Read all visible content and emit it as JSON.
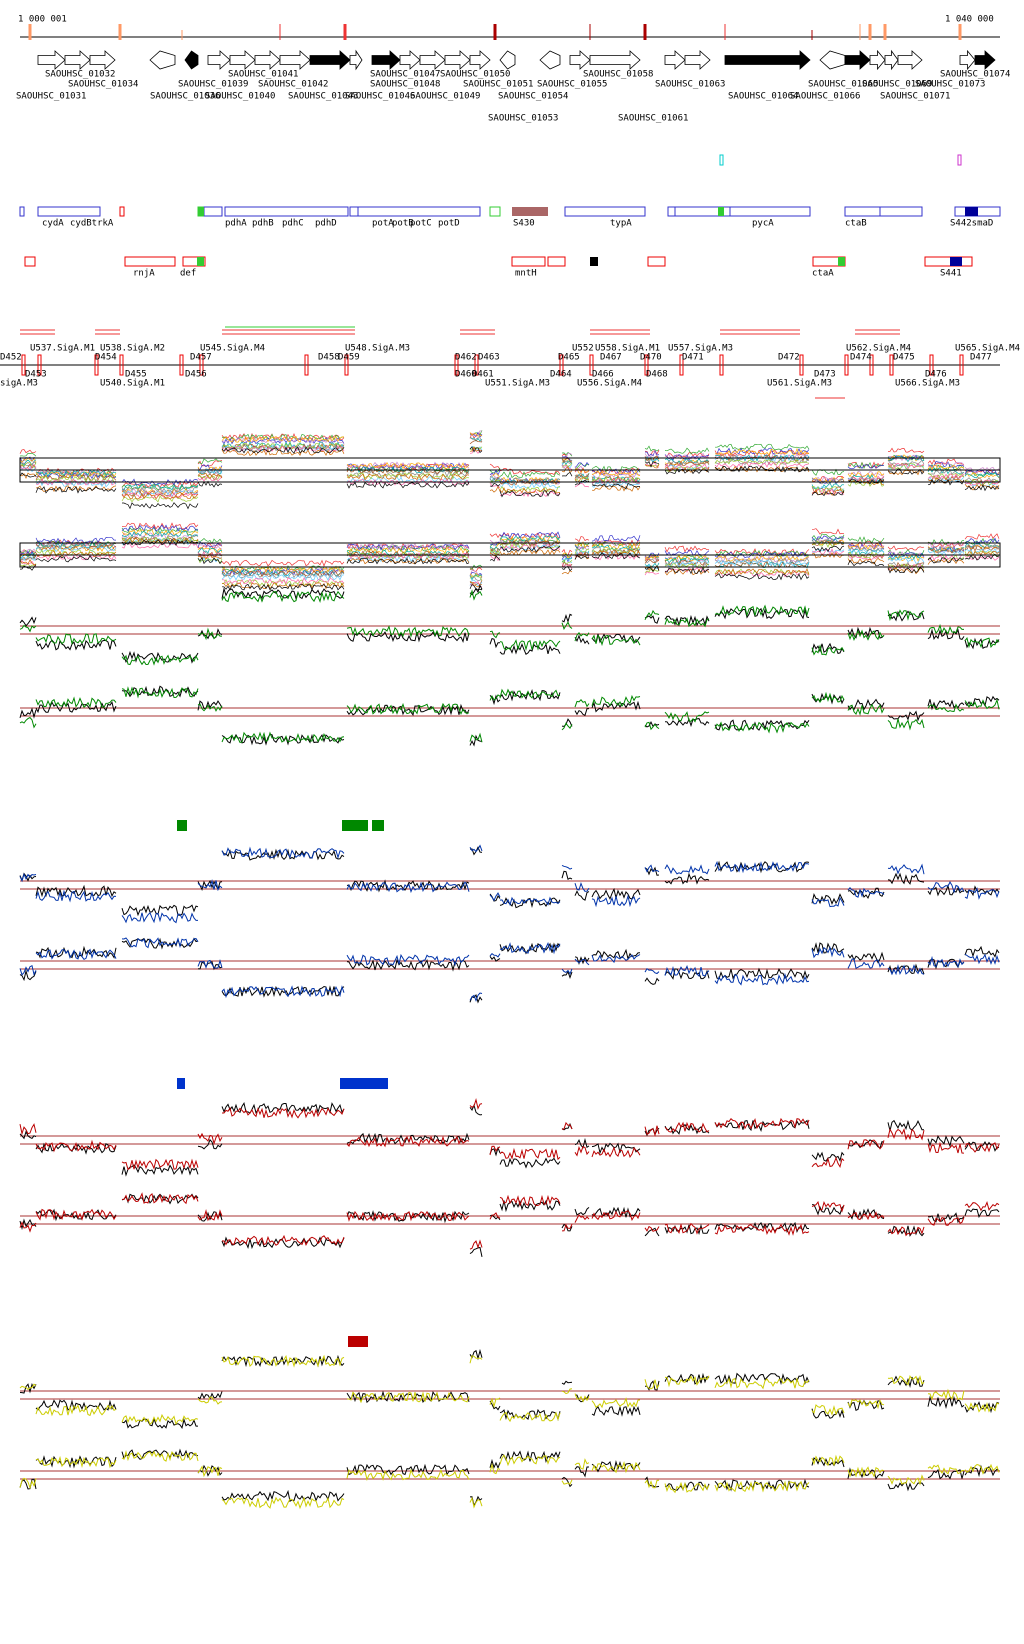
{
  "ruler": {
    "start": "1 000 001",
    "end": "1 040 000"
  },
  "genes": [
    "SAOUHSC_01032",
    "SAOUHSC_01041",
    "SAOUHSC_01047",
    "SAOUHSC_01050",
    "SAOUHSC_01058",
    "SAOUHSC_01074",
    "SAOUHSC_01034",
    "SAOUHSC_01039",
    "SAOUHSC_01042",
    "SAOUHSC_01048",
    "SAOUHSC_01051",
    "SAOUHSC_01055",
    "SAOUHSC_01063",
    "SAOUHSC_01065",
    "SAOUHSC_01069",
    "SAOUHSC_01073",
    "SAOUHSC_01031",
    "SAOUHSC_01036",
    "SAOUHSC_01040",
    "SAOUHSC_01043",
    "SAOUHSC_01046",
    "SAOUHSC_01049",
    "SAOUHSC_01054",
    "SAOUHSC_01064",
    "SAOUHSC_01066",
    "SAOUHSC_01071",
    "SAOUHSC_01053",
    "SAOUHSC_01061"
  ],
  "annotations": [
    "cydA",
    "cydBtrkA",
    "pdhA",
    "pdhB",
    "pdhC",
    "pdhD",
    "potA",
    "potB",
    "potC",
    "potD",
    "S430",
    "typA",
    "pycA",
    "ctaB",
    "S442smaD"
  ],
  "annotations2": [
    "rnjA",
    "def",
    "mntH",
    "ctaA",
    "S441"
  ],
  "units": [
    "U537.SigA.M1",
    "U538.SigA.M2",
    "U545.SigA.M4",
    "U548.SigA.M3",
    "U552",
    "U558.SigA.M1",
    "U557.SigA.M3",
    "U562.SigA.M4",
    "U565.SigA.M4",
    "D452",
    "D454",
    "D457",
    "D458",
    "D459",
    "D462",
    "D463",
    "D465",
    "D467",
    "D470",
    "D471",
    "D472",
    "D474",
    "D475",
    "D477",
    "D453",
    "D455",
    "D456",
    "D460",
    "D461",
    "D464",
    "D466",
    "D468",
    "D473",
    "D476",
    "sigA.M3",
    "U540.SigA.M1",
    "U551.SigA.M3",
    "U556.SigA.M4",
    "U561.SigA.M3",
    "U566.SigA.M3"
  ]
}
